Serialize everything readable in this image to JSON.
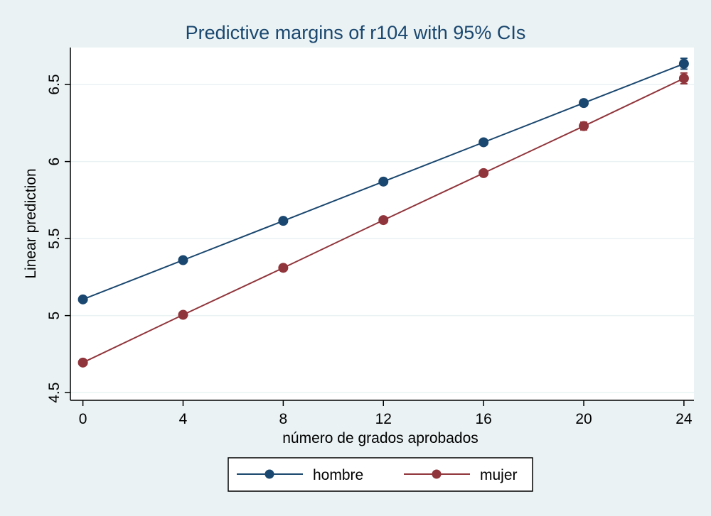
{
  "chart_data": {
    "type": "line",
    "title": "Predictive margins of r104 with 95% CIs",
    "xlabel": "número de grados aprobados",
    "ylabel": "Linear prediction",
    "x": [
      0,
      4,
      8,
      12,
      16,
      20,
      24
    ],
    "xticks": [
      0,
      4,
      8,
      12,
      16,
      20,
      24
    ],
    "yticks": [
      4.5,
      5,
      5.5,
      6,
      6.5
    ],
    "xlim": [
      -0.5,
      24.4
    ],
    "ylim": [
      4.45,
      6.74
    ],
    "grid": true,
    "legend_position": "bottom",
    "series": [
      {
        "name": "hombre",
        "color": "#1a476f",
        "values": [
          5.105,
          5.36,
          5.615,
          5.87,
          6.125,
          6.38,
          6.635
        ],
        "ci_low": [
          5.09,
          5.35,
          5.605,
          5.86,
          6.11,
          6.36,
          6.6
        ],
        "ci_high": [
          5.12,
          5.37,
          5.625,
          5.88,
          6.14,
          6.4,
          6.67
        ]
      },
      {
        "name": "mujer",
        "color": "#90353b",
        "values": [
          4.695,
          5.005,
          5.31,
          5.62,
          5.925,
          6.23,
          6.54
        ],
        "ci_low": [
          4.68,
          4.995,
          5.3,
          5.61,
          5.91,
          6.205,
          6.505
        ],
        "ci_high": [
          4.71,
          5.015,
          5.32,
          5.63,
          5.94,
          6.255,
          6.575
        ]
      }
    ]
  }
}
